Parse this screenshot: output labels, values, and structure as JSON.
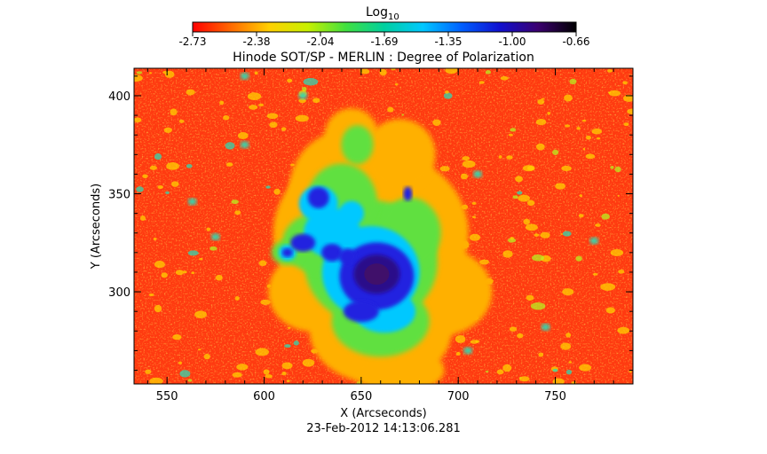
{
  "colorbar": {
    "label": "Log",
    "label_subscript": "10",
    "ticks": [
      "-2.73",
      "-2.38",
      "-2.04",
      "-1.69",
      "-1.35",
      "-1.00",
      "-0.66"
    ],
    "range": [
      -2.73,
      -0.66
    ],
    "colormap": [
      "#ff0000",
      "#ff6a00",
      "#ffd000",
      "#c8f000",
      "#40e040",
      "#00d0a0",
      "#00c8ff",
      "#0060ff",
      "#1010d0",
      "#3b0070",
      "#000000"
    ]
  },
  "plot": {
    "title": "Hinode SOT/SP - MERLIN : Degree of Polarization",
    "xlabel": "X (Arcseconds)",
    "ylabel": "Y (Arcseconds)",
    "x_ticks": [
      "550",
      "600",
      "650",
      "700",
      "750"
    ],
    "y_ticks": [
      "300",
      "350",
      "400"
    ],
    "xlim": [
      533,
      790
    ],
    "ylim": [
      253,
      414
    ],
    "background_color": "#ff3a10"
  },
  "timestamp": "23-Feb-2012 14:13:06.281"
}
